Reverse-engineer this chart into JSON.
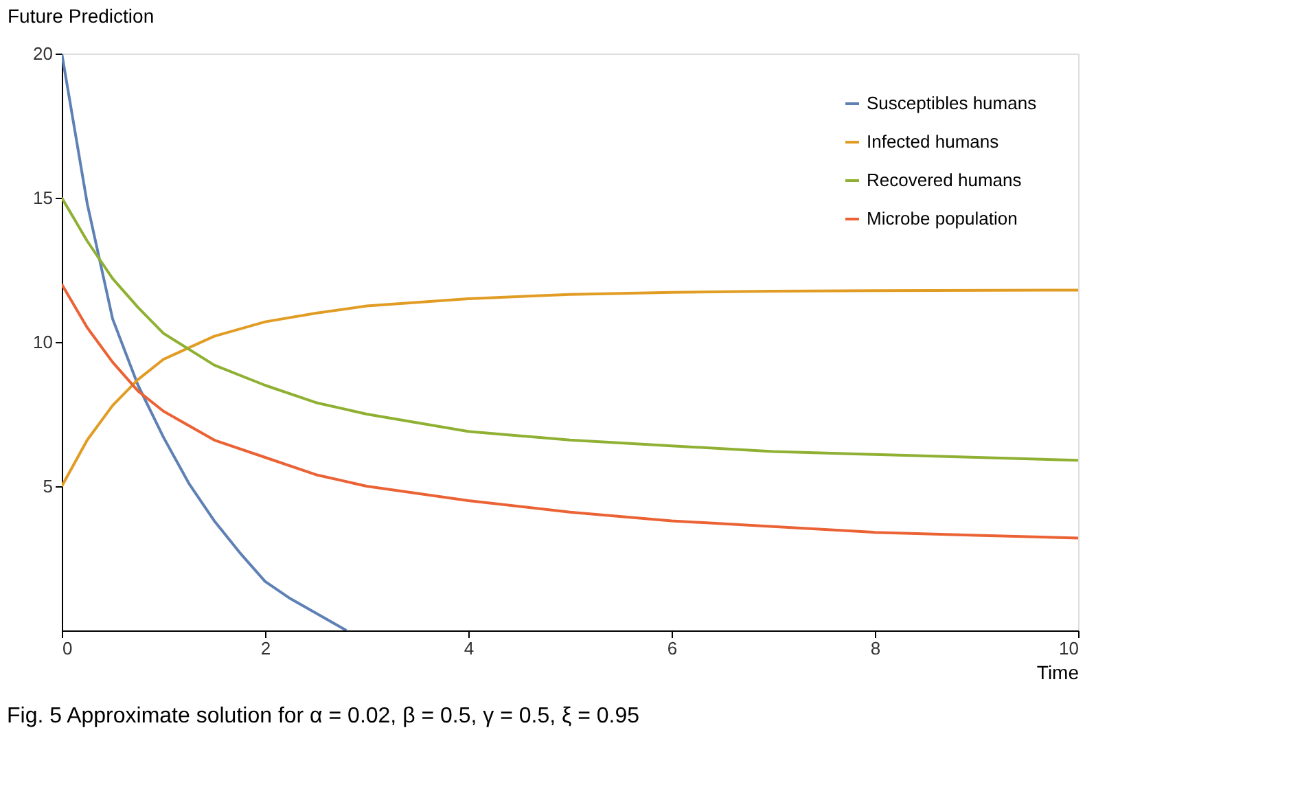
{
  "chart_data": {
    "type": "line",
    "xlabel": "Time",
    "ylabel": "Future Prediction",
    "xlim": [
      0,
      10
    ],
    "xticks": [
      0,
      2,
      4,
      6,
      8,
      10
    ],
    "ylim": [
      0,
      20
    ],
    "yticks": [
      5,
      10,
      15,
      20
    ],
    "grid": false,
    "legend": "top right",
    "marker": "none",
    "line_style": "solid",
    "annotations": [
      "Fig. 5  Approximate solution for α = 0.02, β = 0.5, γ = 0.5, ξ = 0.95"
    ],
    "series": [
      {
        "name": "Susceptibles humans",
        "color": "#5e81b5",
        "x": [
          0,
          0.25,
          0.5,
          0.75,
          1,
          1.25,
          1.5,
          1.75,
          2,
          2.25,
          2.5,
          2.8
        ],
        "values": [
          20,
          14.8,
          10.8,
          8.5,
          6.7,
          5.1,
          3.8,
          2.7,
          1.7,
          1.1,
          0.6,
          0
        ]
      },
      {
        "name": "Infected humans",
        "color": "#e19c24",
        "x": [
          0,
          0.25,
          0.5,
          0.75,
          1,
          1.5,
          2,
          2.5,
          3,
          4,
          5,
          6,
          7,
          8,
          10
        ],
        "values": [
          5,
          6.6,
          7.8,
          8.7,
          9.4,
          10.2,
          10.7,
          11.0,
          11.25,
          11.5,
          11.65,
          11.72,
          11.76,
          11.78,
          11.8
        ]
      },
      {
        "name": "Recovered humans",
        "color": "#8fb032",
        "x": [
          0,
          0.25,
          0.5,
          0.75,
          1,
          1.5,
          2,
          2.5,
          3,
          4,
          5,
          6,
          7,
          8,
          9,
          10
        ],
        "values": [
          15,
          13.5,
          12.2,
          11.2,
          10.3,
          9.2,
          8.5,
          7.9,
          7.5,
          6.9,
          6.6,
          6.4,
          6.2,
          6.1,
          6.0,
          5.9
        ]
      },
      {
        "name": "Microbe population",
        "color": "#eb6235",
        "x": [
          0,
          0.25,
          0.5,
          0.75,
          1,
          1.5,
          2,
          2.5,
          3,
          4,
          5,
          6,
          7,
          8,
          9,
          10
        ],
        "values": [
          12,
          10.5,
          9.3,
          8.3,
          7.6,
          6.6,
          6.0,
          5.4,
          5.0,
          4.5,
          4.1,
          3.8,
          3.6,
          3.4,
          3.3,
          3.2
        ]
      }
    ]
  }
}
